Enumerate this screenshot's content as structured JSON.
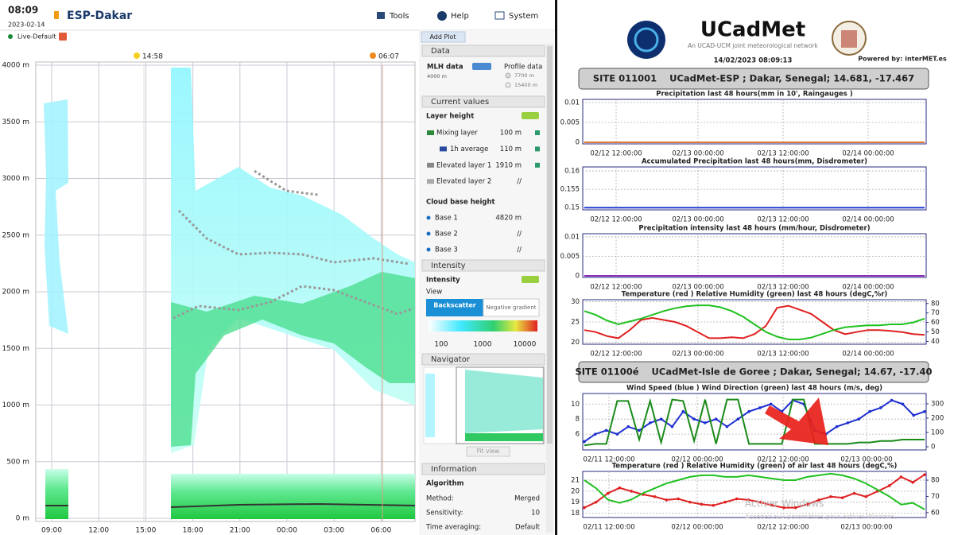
{
  "app": {
    "time": "08:09",
    "date": "2023-02-14",
    "title": "ESP-Dakar",
    "menu": [
      "Tools",
      "Help",
      "System"
    ],
    "tab": "Live-Default"
  },
  "plot": {
    "ylim": [
      0,
      4000
    ],
    "yticks": [
      {
        "value": 0,
        "label": "0 m"
      },
      {
        "value": 500,
        "label": "500 m"
      },
      {
        "value": 1000,
        "label": "1000 m"
      },
      {
        "value": 1500,
        "label": "1500 m"
      },
      {
        "value": 2000,
        "label": "2000 m"
      },
      {
        "value": 2500,
        "label": "2500 m"
      },
      {
        "value": 3000,
        "label": "3000 m"
      },
      {
        "value": 3500,
        "label": "3500 m"
      },
      {
        "value": 4000,
        "label": "4000 m"
      }
    ],
    "x_labels": [
      "09:00",
      "12:00",
      "15:00",
      "18:00",
      "21:00",
      "00:00",
      "03:00",
      "06:00"
    ],
    "sunset": "14:58",
    "sunrise": "06:07"
  },
  "sidebar": {
    "add_plot": "Add Plot",
    "data": {
      "header": "Data",
      "mlh": "MLH data",
      "mlh_range": "4000 m",
      "profile": "Profile data",
      "profile_ranges": [
        "7700 m",
        "15400 m"
      ]
    },
    "current": {
      "header": "Current values",
      "layer_height": "Layer height",
      "rows": [
        [
          "Mixing layer",
          "100 m"
        ],
        [
          "1h average",
          "110 m"
        ],
        [
          "Elevated layer 1",
          "1910 m"
        ],
        [
          "Elevated layer 2",
          "//"
        ]
      ],
      "cloud_base": "Cloud base height",
      "bases": [
        [
          "Base 1",
          "4820 m"
        ],
        [
          "Base 2",
          "//"
        ],
        [
          "Base 3",
          "//"
        ]
      ]
    },
    "intensity": {
      "header": "Intensity",
      "label": "Intensity",
      "view": "View",
      "options": [
        "Backscatter",
        "Negative gradient"
      ],
      "scale": [
        "100",
        "1000",
        "10000"
      ]
    },
    "navigator": {
      "header": "Navigator",
      "fit": "Fit view"
    },
    "information": {
      "header": "Information",
      "algorithm": "Algorithm",
      "rows": [
        [
          "Method:",
          "Merged"
        ],
        [
          "Sensitivity:",
          "10"
        ],
        [
          "Time averaging:",
          "Default"
        ]
      ]
    }
  },
  "ucadmet": {
    "title": "UCadMet",
    "subtitle": "An UCAD-UCM joint meteorological network",
    "timestamp": "14/02/2023 08:09:13",
    "powered": "Powered by: interMET.es",
    "sites": [
      "SITE 011001    UCadMet-ESP ; Dakar, Senegal; 14.681, -17.467",
      "SITE 01100é    UCadMet-Isle de Goree ; Dakar, Senegal; 14.67, -17.40"
    ],
    "charts": [
      {
        "type": "line",
        "title": "Precipitation last 48 hours(mm in 10', Raingauges )",
        "ylim": [
          -0.0004,
          0.0108
        ],
        "yticks": [
          0,
          0.005,
          0.01
        ],
        "x_labels": [
          "02/12 12:00:00",
          "02/13 00:00:00",
          "02/13 12:00:00",
          "02/14 00:00:00"
        ],
        "series": [
          {
            "color": "#e07b39",
            "values": [
              0,
              0
            ]
          }
        ]
      },
      {
        "type": "line",
        "title": "Accumulated Precipitation last 48 hours(mm, Disdrometer)",
        "ylim": [
          0.1494,
          0.1611
        ],
        "yticks": [
          0.15,
          0.155,
          0.16
        ],
        "x_labels": [
          "02/12 12:00:00",
          "02/13 00:00:00",
          "02/13 12:00:00",
          "02/14 00:00:00"
        ],
        "series": [
          {
            "color": "#1f3fd0",
            "values": [
              0.15,
              0.15
            ]
          }
        ]
      },
      {
        "type": "line",
        "title": "Precipitation intensity last 48 hours (mm/hour,  Disdrometer)",
        "ylim": [
          -0.0004,
          0.0108
        ],
        "yticks": [
          0,
          0.005,
          0.01
        ],
        "x_labels": [
          "02/12 12:00:00",
          "02/13 00:00:00",
          "02/13 12:00:00",
          "02/14 00:00:00"
        ],
        "series": [
          {
            "color": "#8a2bb8",
            "values": [
              0,
              0
            ]
          }
        ]
      },
      {
        "type": "line",
        "title": "Temperature (red ) Relative Humidity (green) last 48 hours (degC,%r)",
        "ylim": [
          19.5,
          30.5
        ],
        "yticks": [
          20,
          25,
          30
        ],
        "y2lim": [
          37,
          84
        ],
        "y2ticks": [
          40,
          50,
          60,
          70,
          80
        ],
        "x_labels": [
          "02/12 12:00:00",
          "02/13 00:00:00",
          "02/13 12:00:00",
          "02/14 00:00:00"
        ],
        "series": [
          {
            "color": "#e02020",
            "values": [
              23,
              22.5,
              21.5,
              21,
              23,
              25.5,
              26,
              25.5,
              25,
              24,
              22.5,
              21,
              21,
              21.2,
              21,
              22,
              24,
              28.5,
              29,
              28,
              27,
              25,
              23,
              22,
              22.5,
              23,
              23,
              22.8,
              22.5,
              22,
              21.8
            ]
          },
          {
            "color": "#20c020",
            "axis": "y2",
            "values": [
              72,
              68,
              62,
              58,
              61,
              64,
              68,
              72,
              75,
              77,
              78,
              78,
              76,
              72,
              66,
              58,
              50,
              45,
              42,
              42,
              44,
              48,
              52,
              55,
              56,
              57,
              57,
              58,
              58,
              60,
              64
            ]
          }
        ]
      },
      {
        "type": "line",
        "title": "Wind Speed (blue ) Wind Direction (green) last 48 hours (m/s, deg)",
        "ylim": [
          3.9,
          11.4
        ],
        "yticks": [
          6,
          8,
          10
        ],
        "y2lim": [
          -22,
          372
        ],
        "y2ticks": [
          0,
          100,
          200,
          300
        ],
        "x_labels": [
          "02/11 12:00:00",
          "02/12 00:00:00",
          "02/12 12:00:00",
          "02/13 00:00:00"
        ],
        "series": [
          {
            "color": "#1f2fd0",
            "values": [
              5,
              6,
              6.5,
              6,
              7,
              6.5,
              7.5,
              8,
              7,
              9,
              8,
              7.5,
              8,
              7,
              8,
              9,
              9.5,
              10,
              9,
              10.5,
              10,
              6.5,
              6,
              7,
              7.5,
              8,
              9,
              9.5,
              10.5,
              10,
              8.5,
              9
            ]
          },
          {
            "color": "#1a8a1a",
            "axis": "y2",
            "values": [
              10,
              20,
              20,
              320,
              320,
              50,
              320,
              30,
              330,
              320,
              40,
              330,
              20,
              330,
              330,
              20,
              20,
              20,
              20,
              330,
              330,
              20,
              20,
              20,
              20,
              30,
              30,
              40,
              40,
              50,
              50,
              50
            ]
          }
        ]
      },
      {
        "type": "line",
        "title": "Temperature (red ) Relative Humidity (green) of air last 48 hours (degC,%)",
        "ylim": [
          17.6,
          21.8
        ],
        "yticks": [
          18,
          19,
          20,
          21
        ],
        "y2lim": [
          57,
          85.4
        ],
        "y2ticks": [
          60,
          70,
          80
        ],
        "x_labels": [
          "02/11 12:00:00",
          "02/12 00:00:00",
          "02/12 12:00:00",
          "02/13 00:00:00"
        ],
        "series": [
          {
            "color": "#e02020",
            "values": [
              18.5,
              19,
              19.8,
              20.3,
              20,
              19.7,
              19.5,
              19.2,
              19.3,
              19,
              18.8,
              18.7,
              19,
              19.3,
              19.2,
              19,
              18.7,
              18.5,
              18.5,
              18.8,
              19.2,
              19.5,
              19.4,
              19.8,
              19.5,
              20,
              20.5,
              21.3,
              20.8,
              21.5
            ]
          },
          {
            "color": "#20c020",
            "axis": "y2",
            "values": [
              80,
              75,
              68,
              66,
              68,
              72,
              75,
              78,
              80,
              82,
              83,
              83,
              82,
              82,
              83,
              82,
              81,
              80,
              80,
              82,
              83,
              84,
              83,
              81,
              78,
              74,
              70,
              65,
              66,
              62
            ]
          }
        ]
      }
    ]
  },
  "watermark": [
    "Activer Windows",
    "Accédez aux paramètres pour activer Windows."
  ]
}
